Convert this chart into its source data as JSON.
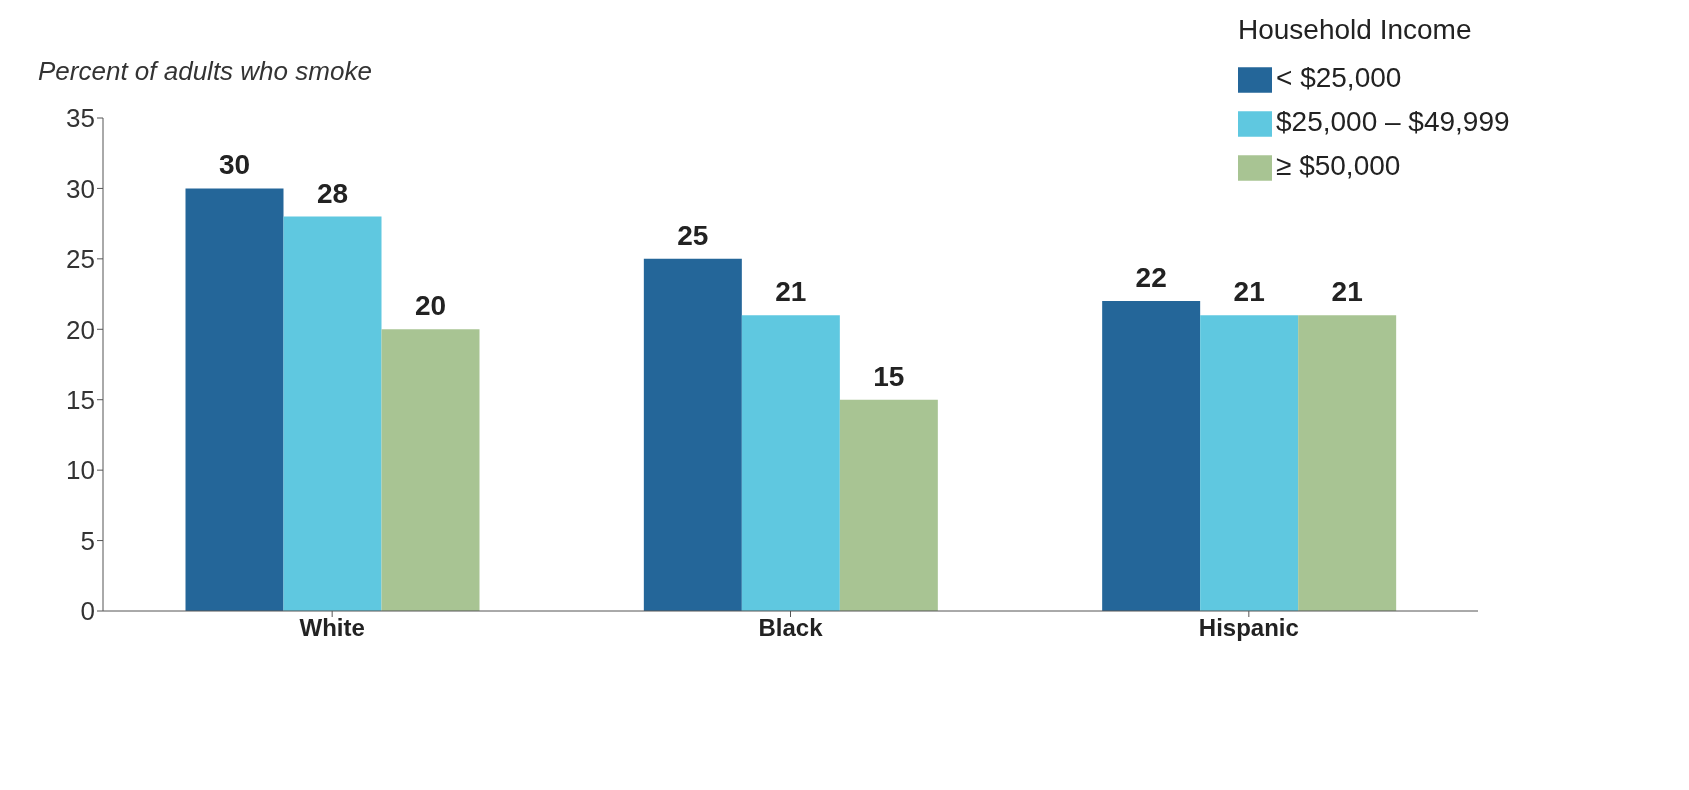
{
  "chart_data": {
    "type": "bar",
    "ylabel": "Percent of adults who smoke",
    "legend_title": "Household Income",
    "categories": [
      "White",
      "Black",
      "Hispanic"
    ],
    "series": [
      {
        "name": "< $25,000",
        "color": "#246699",
        "values": [
          30,
          25,
          22
        ]
      },
      {
        "name": "$25,000 – $49,999",
        "color": "#5fc8e0",
        "values": [
          28,
          21,
          21
        ]
      },
      {
        "name": "≥ $50,000",
        "color": "#a8c493",
        "values": [
          20,
          15,
          21
        ]
      }
    ],
    "ylim": [
      0,
      35
    ],
    "yticks": [
      0,
      5,
      10,
      15,
      20,
      25,
      30,
      35
    ],
    "data_labels": true,
    "legend": "top right",
    "grid": false
  }
}
